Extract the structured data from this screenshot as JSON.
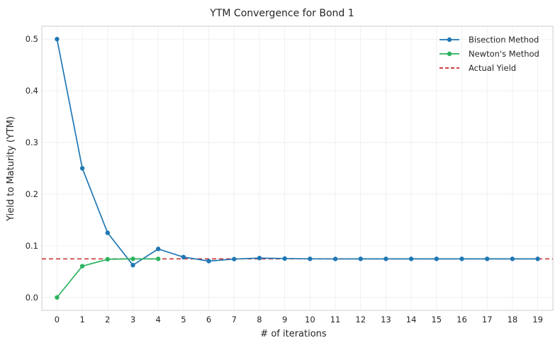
{
  "chart_data": {
    "type": "line",
    "title": "YTM Convergence for Bond 1",
    "xlabel": "# of iterations",
    "ylabel": "Yield to Maturity (YTM)",
    "xlim": [
      -0.6,
      19.6
    ],
    "ylim": [
      -0.025,
      0.525
    ],
    "x_ticks": [
      0,
      1,
      2,
      3,
      4,
      5,
      6,
      7,
      8,
      9,
      10,
      11,
      12,
      13,
      14,
      15,
      16,
      17,
      18,
      19
    ],
    "x_tick_labels": [
      "0",
      "1",
      "2",
      "3",
      "4",
      "5",
      "6",
      "7",
      "8",
      "9",
      "10",
      "11",
      "12",
      "13",
      "14",
      "15",
      "16",
      "17",
      "18",
      "19"
    ],
    "y_ticks": [
      0.0,
      0.1,
      0.2,
      0.3,
      0.4,
      0.5
    ],
    "y_tick_labels": [
      "0.0",
      "0.1",
      "0.2",
      "0.3",
      "0.4",
      "0.5"
    ],
    "grid": true,
    "legend_position": "top-right",
    "series": [
      {
        "name": "Bisection Method",
        "color": "#1f77b4",
        "marker": true,
        "x": [
          0,
          1,
          2,
          3,
          4,
          5,
          6,
          7,
          8,
          9,
          10,
          11,
          12,
          13,
          14,
          15,
          16,
          17,
          18,
          19
        ],
        "y": [
          0.5,
          0.25,
          0.125,
          0.0625,
          0.0938,
          0.0781,
          0.0703,
          0.0742,
          0.0762,
          0.0752,
          0.0747,
          0.0745,
          0.0746,
          0.0746,
          0.0746,
          0.0746,
          0.0746,
          0.0746,
          0.0746,
          0.0746
        ]
      },
      {
        "name": "Newton's Method",
        "color": "#2cb35f",
        "marker": true,
        "x": [
          0,
          1,
          2,
          3,
          4
        ],
        "y": [
          0.0,
          0.0605,
          0.0739,
          0.0746,
          0.0746
        ]
      },
      {
        "name": "Actual Yield",
        "color": "#c62828",
        "style": "dashed",
        "marker": false,
        "hline": 0.0746
      }
    ]
  }
}
